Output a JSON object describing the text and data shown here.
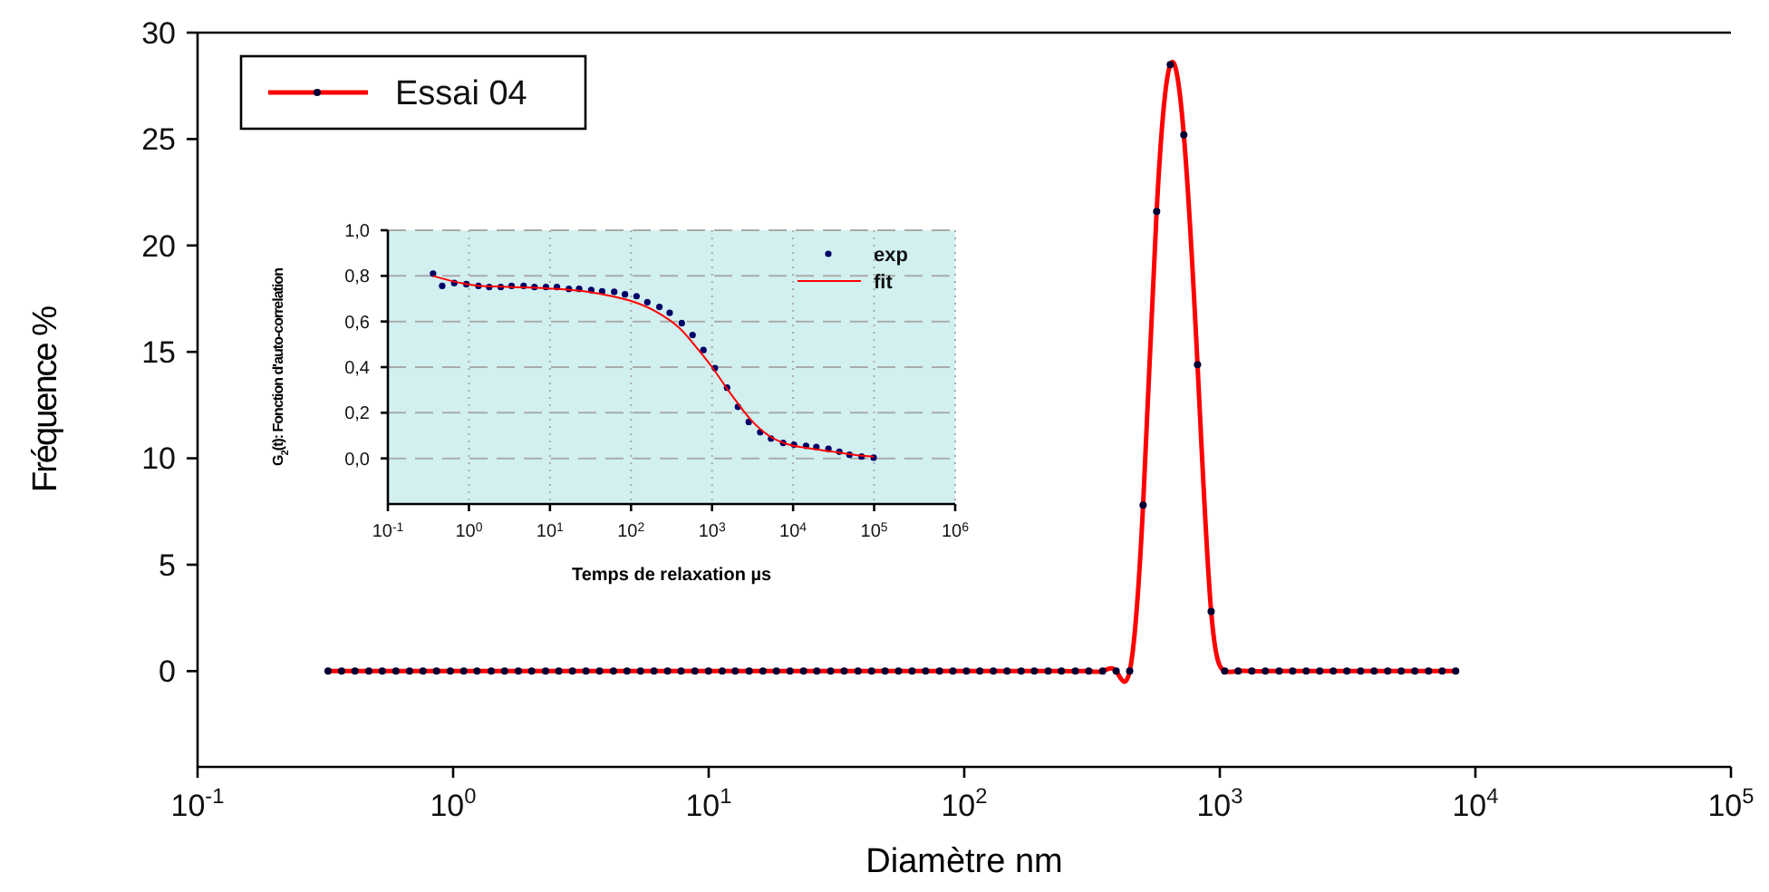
{
  "chart_data": [
    {
      "type": "line",
      "xlabel": "Diamètre nm",
      "ylabel": "Fréquence %",
      "log": "x",
      "xlim": [
        0.1,
        100000
      ],
      "ylim": [
        -4.5,
        30
      ],
      "xticks": [
        {
          "value": 0.1,
          "label": "10$^{-1}$"
        },
        {
          "value": 1,
          "label": "10$^{0}$"
        },
        {
          "value": 10,
          "label": "10$^{1}$"
        },
        {
          "value": 100,
          "label": "10$^{2}$"
        },
        {
          "value": 1000,
          "label": "10$^{3}$"
        },
        {
          "value": 10000,
          "label": "10$^{4}$"
        },
        {
          "value": 100000,
          "label": "10$^{5}$"
        }
      ],
      "yticks": [
        0,
        5,
        10,
        15,
        20,
        25,
        30
      ],
      "grid": false,
      "legend": "top left",
      "marker": "circle",
      "line_style": "solid",
      "x": [
        0.324,
        0.366,
        0.413,
        0.468,
        0.528,
        0.597,
        0.675,
        0.762,
        0.861,
        0.975,
        1.1,
        1.24,
        1.41,
        1.59,
        1.8,
        2.03,
        2.3,
        2.59,
        2.93,
        3.31,
        3.74,
        4.24,
        4.79,
        5.41,
        6.11,
        6.9,
        7.8,
        8.83,
        9.98,
        11.3,
        12.7,
        14.4,
        16.3,
        18.4,
        20.8,
        23.5,
        26.5,
        30.0,
        33.9,
        38.4,
        43.4,
        49.0,
        55.3,
        62.5,
        70.6,
        80.0,
        90.3,
        102,
        115,
        130,
        147,
        167,
        188,
        213,
        240,
        272,
        307,
        348,
        393,
        444,
        501,
        566,
        640,
        723,
        818,
        925,
        1045,
        1180,
        1334,
        1507,
        1706,
        1928,
        2178,
        2460,
        2780,
        3141,
        3556,
        4018,
        4539,
        5129,
        5794,
        6561,
        7413,
        8375
      ],
      "series": [
        {
          "name": "Essai 04",
          "color": "#ff0000",
          "values": [
            0,
            0,
            0,
            0,
            0,
            0,
            0,
            0,
            0,
            0,
            0,
            0,
            0,
            0,
            0,
            0,
            0,
            0,
            0,
            0,
            0,
            0,
            0,
            0,
            0,
            0,
            0,
            0,
            0,
            0,
            0,
            0,
            0,
            0,
            0,
            0,
            0,
            0,
            0,
            0,
            0,
            0,
            0,
            0,
            0,
            0,
            0,
            0,
            0,
            0,
            0,
            0,
            0,
            0,
            0,
            0,
            0,
            0,
            0,
            0,
            7.8,
            21.6,
            28.5,
            25.2,
            14.4,
            2.8,
            0,
            0,
            0,
            0,
            0,
            0,
            0,
            0,
            0,
            0,
            0,
            0,
            0,
            0,
            0,
            0,
            0,
            0
          ]
        }
      ]
    },
    {
      "type": "scatter",
      "xlabel": "Temps de relaxation µs",
      "ylabel": "G$_{2}$(t): Fonction d'auto-correlation",
      "log": "x",
      "xlim": [
        0.1,
        1000000
      ],
      "ylim": [
        -0.2,
        1.0
      ],
      "xticks": [
        {
          "value": 0.1,
          "label": "10$^{-1}$"
        },
        {
          "value": 1,
          "label": "10$^{0}$"
        },
        {
          "value": 10,
          "label": "10$^{1}$"
        },
        {
          "value": 100,
          "label": "10$^{2}$"
        },
        {
          "value": 1000,
          "label": "10$^{3}$"
        },
        {
          "value": 10000,
          "label": "10$^{4}$"
        },
        {
          "value": 100000,
          "label": "10$^{5}$"
        },
        {
          "value": 1000000,
          "label": "10$^{6}$"
        }
      ],
      "yticks": [
        {
          "value": 0,
          "label": "0,0"
        },
        {
          "value": 0.2,
          "label": "0,2"
        },
        {
          "value": 0.4,
          "label": "0,4"
        },
        {
          "value": 0.6,
          "label": "0,6"
        },
        {
          "value": 0.8,
          "label": "0,8"
        },
        {
          "value": 1.0,
          "label": "1,0"
        }
      ],
      "grid": true,
      "legend": "top right",
      "series": [
        {
          "name": "exp",
          "marker": "circle",
          "color": "#000066",
          "x": [
            0.361,
            0.468,
            0.659,
            0.929,
            1.31,
            1.78,
            2.47,
            3.36,
            4.73,
            6.44,
            8.93,
            12.2,
            17.1,
            22.9,
            32.3,
            44.0,
            62.0,
            84.3,
            117,
            159,
            224,
            300,
            423,
            575,
            783,
            1086,
            1531,
            2084,
            2838,
            3928,
            5346,
            7534,
            10260,
            14450,
            19360,
            27290,
            37150,
            49660,
            69980,
            98620
          ],
          "values": [
            0.81,
            0.756,
            0.769,
            0.764,
            0.756,
            0.751,
            0.751,
            0.756,
            0.756,
            0.751,
            0.751,
            0.751,
            0.743,
            0.743,
            0.738,
            0.732,
            0.73,
            0.719,
            0.711,
            0.685,
            0.664,
            0.638,
            0.593,
            0.541,
            0.475,
            0.396,
            0.31,
            0.226,
            0.16,
            0.115,
            0.087,
            0.068,
            0.06,
            0.055,
            0.05,
            0.042,
            0.029,
            0.016,
            0.008,
            0.003
          ]
        },
        {
          "name": "fit",
          "type": "line",
          "marker": "none",
          "color": "#ff0000",
          "x": [
            0.36,
            0.66,
            1.3,
            3,
            10,
            30,
            60,
            100,
            200,
            400,
            700,
            1000,
            1500,
            2200,
            3000,
            5000,
            8000,
            15000,
            30000,
            60000,
            100000
          ],
          "values": [
            0.8,
            0.775,
            0.757,
            0.752,
            0.745,
            0.73,
            0.71,
            0.69,
            0.645,
            0.57,
            0.47,
            0.4,
            0.31,
            0.23,
            0.17,
            0.1,
            0.065,
            0.045,
            0.03,
            0.015,
            0.008
          ]
        }
      ]
    }
  ]
}
